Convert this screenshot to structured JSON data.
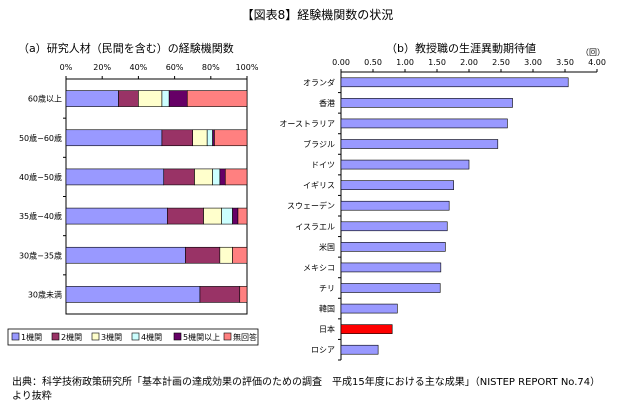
{
  "figure_title": "【図表8】経験機関数の状況",
  "source_line1": "出典：科学技術政策研究所「基本計画の達成効果の評価のための調査　平成15年度における主な成果」（NISTEP REPORT No.74）",
  "source_line2": "より抜粋",
  "chart_data": [
    {
      "type": "bar",
      "orientation": "horizontal",
      "stacked": true,
      "title": "（a）研究人材（民間を含む）の経験機関数",
      "categories": [
        "60歳以上",
        "50歳−60歳",
        "40歳−50歳",
        "35歳−40歳",
        "30歳−35歳",
        "30歳未満"
      ],
      "xticks": [
        "0%",
        "20%",
        "40%",
        "60%",
        "80%",
        "100%"
      ],
      "xlim": [
        0,
        100
      ],
      "legend_position": "bottom",
      "series": [
        {
          "name": "1機関",
          "color": "#9999ff",
          "values": [
            29,
            53,
            54,
            56,
            66,
            74
          ]
        },
        {
          "name": "2機関",
          "color": "#993366",
          "values": [
            11,
            17,
            17,
            20,
            19,
            22
          ]
        },
        {
          "name": "3機関",
          "color": "#ffffcc",
          "values": [
            13,
            8,
            10,
            10,
            7,
            0
          ]
        },
        {
          "name": "4機関",
          "color": "#ccffff",
          "values": [
            4,
            3,
            4,
            6,
            0,
            0
          ]
        },
        {
          "name": "5機関以上",
          "color": "#660066",
          "values": [
            10,
            1,
            3,
            3,
            0,
            0
          ]
        },
        {
          "name": "無回答",
          "color": "#ff8080",
          "values": [
            33,
            18,
            12,
            5,
            8,
            4
          ]
        }
      ]
    },
    {
      "type": "bar",
      "orientation": "horizontal",
      "title": "（b）教授職の生涯異動期待値",
      "unit_label": "（回）",
      "categories": [
        "オランダ",
        "香港",
        "オーストラリア",
        "ブラジル",
        "ドイツ",
        "イギリス",
        "スウェーデン",
        "イスラエル",
        "米国",
        "メキシコ",
        "チリ",
        "韓国",
        "日本",
        "ロシア"
      ],
      "values": [
        3.55,
        2.68,
        2.6,
        2.45,
        2.0,
        1.76,
        1.69,
        1.66,
        1.63,
        1.56,
        1.55,
        0.88,
        0.8,
        0.58
      ],
      "xticks": [
        "0.00",
        "0.50",
        "1.00",
        "1.50",
        "2.00",
        "2.50",
        "3.00",
        "3.50",
        "4.00"
      ],
      "xlim": [
        0,
        4
      ],
      "bar_color": "#9999ff",
      "highlight_category": "日本",
      "highlight_color": "#ff0000"
    }
  ]
}
